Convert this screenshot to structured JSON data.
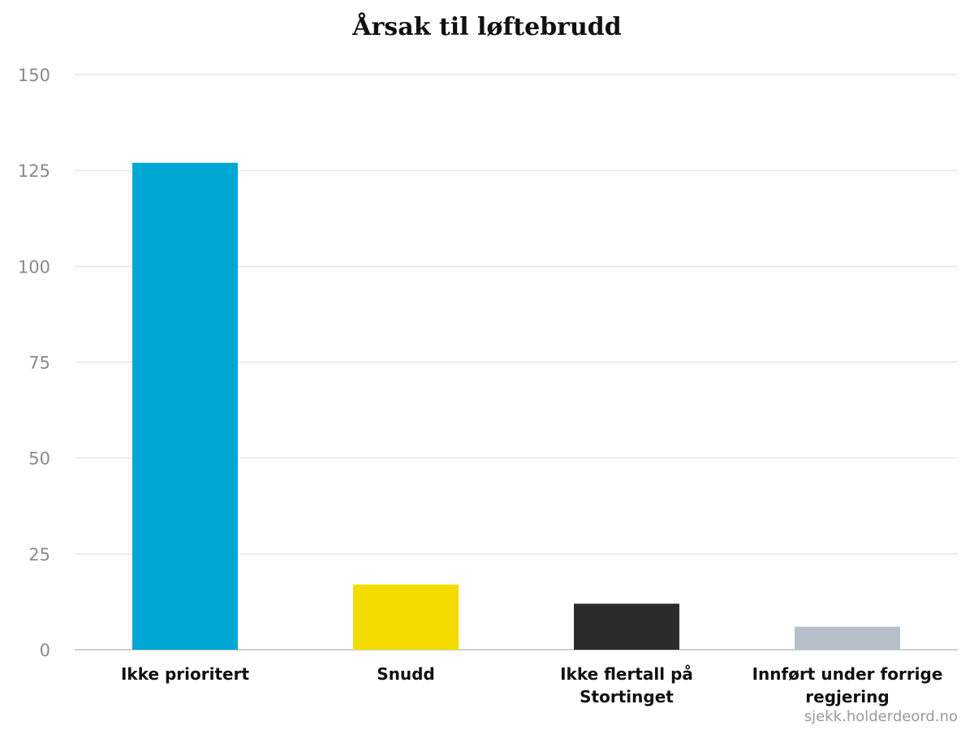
{
  "chart_data": {
    "type": "bar",
    "title": "Årsak til løftebrudd",
    "xlabel": "",
    "ylabel": "",
    "categories": [
      [
        "Ikke prioritert"
      ],
      [
        "Snudd"
      ],
      [
        "Ikke flertall på",
        "Stortinget"
      ],
      [
        "Innført under forrige",
        "regjering"
      ]
    ],
    "values": [
      127,
      17,
      12,
      6
    ],
    "colors": [
      "#00a6d4",
      "#f5dc00",
      "#2b2b2b",
      "#b8bfcc"
    ],
    "ylim": [
      0,
      150
    ],
    "yticks": [
      "0",
      "25",
      "50",
      "75",
      "100",
      "125",
      "150"
    ],
    "grid": true,
    "legend": "none"
  },
  "credit": "sjekk.holderdeord.no"
}
